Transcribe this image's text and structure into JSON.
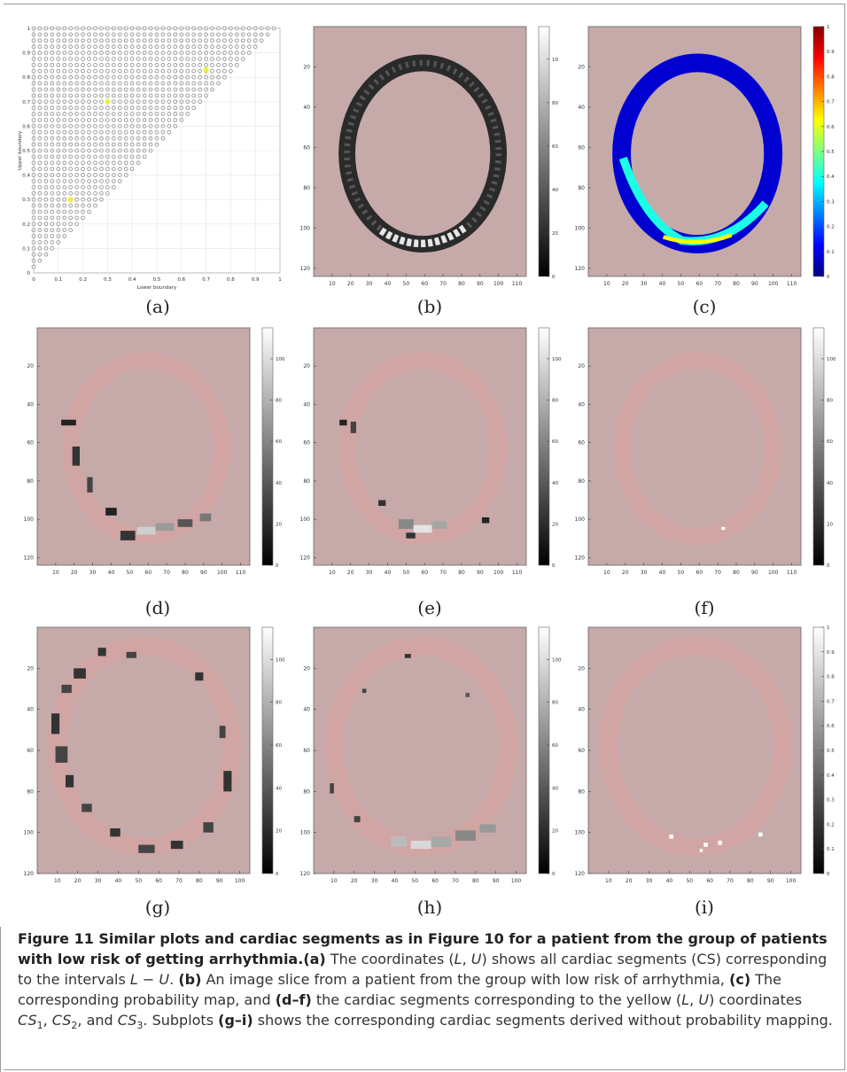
{
  "panel_labels": [
    "(a)",
    "(b)",
    "(c)",
    "(d)",
    "(e)",
    "(f)",
    "(g)",
    "(h)",
    "(i)"
  ],
  "chart_data": [
    {
      "panel": "(a)",
      "type": "scatter",
      "xlabel": "Lower boundary",
      "ylabel": "Upper boundary",
      "xlim": [
        0,
        1
      ],
      "ylim": [
        0,
        1
      ],
      "x_ticks": [
        "0",
        "0.1",
        "0.2",
        "0.3",
        "0.4",
        "0.5",
        "0.6",
        "0.7",
        "0.8",
        "0.9",
        "1"
      ],
      "y_ticks": [
        "0",
        "0.1",
        "0.2",
        "0.3",
        "0.4",
        "0.5",
        "0.6",
        "0.7",
        "0.8",
        "0.9",
        "1"
      ],
      "grid": true,
      "description_points": "gray markers at every (L,U) grid point with U > L, step 0.025",
      "highlighted_points": [
        [
          0.15,
          0.3
        ],
        [
          0.3,
          0.7
        ],
        [
          0.7,
          0.83
        ]
      ],
      "highlight_color": "#f2ef3a",
      "marker_color": "#8a8a8a"
    },
    {
      "panel": "(b)",
      "type": "heatmap",
      "colormap": "gray",
      "x_ticks": [
        "10",
        "20",
        "30",
        "40",
        "50",
        "60",
        "70",
        "80",
        "90",
        "100",
        "110"
      ],
      "y_ticks": [
        "20",
        "40",
        "60",
        "80",
        "100",
        "120"
      ],
      "colorbar_ticks": [
        "0",
        "20",
        "40",
        "60",
        "80",
        "100"
      ]
    },
    {
      "panel": "(c)",
      "type": "heatmap",
      "colormap": "jet",
      "x_ticks": [
        "10",
        "20",
        "30",
        "40",
        "50",
        "60",
        "70",
        "80",
        "90",
        "100",
        "110"
      ],
      "y_ticks": [
        "20",
        "40",
        "60",
        "80",
        "100",
        "120"
      ],
      "colorbar_ticks": [
        "0",
        "0.1",
        "0.2",
        "0.3",
        "0.4",
        "0.5",
        "0.6",
        "0.7",
        "0.8",
        "0.9",
        "1"
      ]
    },
    {
      "panel": "(d)",
      "type": "heatmap",
      "colormap": "gray",
      "x_ticks": [
        "10",
        "20",
        "30",
        "40",
        "50",
        "60",
        "70",
        "80",
        "90",
        "100",
        "110"
      ],
      "y_ticks": [
        "20",
        "40",
        "60",
        "80",
        "100",
        "120"
      ],
      "colorbar_ticks": [
        "0",
        "20",
        "40",
        "60",
        "80",
        "100"
      ]
    },
    {
      "panel": "(e)",
      "type": "heatmap",
      "colormap": "gray",
      "x_ticks": [
        "10",
        "20",
        "30",
        "40",
        "50",
        "60",
        "70",
        "80",
        "90",
        "100",
        "110"
      ],
      "y_ticks": [
        "20",
        "40",
        "60",
        "80",
        "100",
        "120"
      ],
      "colorbar_ticks": [
        "0",
        "20",
        "40",
        "60",
        "80",
        "100"
      ]
    },
    {
      "panel": "(f)",
      "type": "heatmap",
      "colormap": "gray",
      "x_ticks": [
        "10",
        "20",
        "30",
        "40",
        "50",
        "60",
        "70",
        "80",
        "90",
        "100",
        "110"
      ],
      "y_ticks": [
        "20",
        "40",
        "60",
        "80",
        "100",
        "120"
      ],
      "colorbar_ticks": [
        "0",
        "20",
        "40",
        "60",
        "80",
        "100"
      ]
    },
    {
      "panel": "(g)",
      "type": "heatmap",
      "colormap": "gray",
      "x_ticks": [
        "10",
        "20",
        "30",
        "40",
        "50",
        "60",
        "70",
        "80",
        "90",
        "100"
      ],
      "y_ticks": [
        "20",
        "40",
        "60",
        "80",
        "100",
        "120"
      ],
      "colorbar_ticks": [
        "0",
        "20",
        "40",
        "60",
        "80",
        "100"
      ]
    },
    {
      "panel": "(h)",
      "type": "heatmap",
      "colormap": "gray",
      "x_ticks": [
        "10",
        "20",
        "30",
        "40",
        "50",
        "60",
        "70",
        "80",
        "90",
        "100"
      ],
      "y_ticks": [
        "20",
        "40",
        "60",
        "80",
        "100",
        "120"
      ],
      "colorbar_ticks": [
        "0",
        "20",
        "40",
        "60",
        "80",
        "100"
      ]
    },
    {
      "panel": "(i)",
      "type": "heatmap",
      "colormap": "gray",
      "x_ticks": [
        "10",
        "20",
        "30",
        "40",
        "50",
        "60",
        "70",
        "80",
        "90",
        "100"
      ],
      "y_ticks": [
        "20",
        "40",
        "60",
        "80",
        "100",
        "120"
      ],
      "colorbar_ticks": [
        "0",
        "0.1",
        "0.2",
        "0.3",
        "0.4",
        "0.5",
        "0.6",
        "0.7",
        "0.8",
        "0.9",
        "1"
      ]
    }
  ],
  "caption": {
    "title": "Figure 11 Similar plots and cardiac segments as in Figure 10 for a patient from the group of patients with low risk of getting arrhythmia.",
    "a_label": "(a)",
    "a_text_1": " The coordinates (",
    "L": "L",
    "comma": ", ",
    "U": "U",
    "a_text_2": ") shows all cardiac segments (CS) corresponding to the intervals ",
    "dash": " − ",
    "a_text_3": ". ",
    "b_label": "(b)",
    "b_text": " An image slice from a patient from the group with low risk of arrhythmia, ",
    "c_label": "(c)",
    "c_text": " The corresponding probability map, and ",
    "df_label": "(d–f)",
    "df_text_1": " the cardiac segments corresponding to the yellow (",
    "df_text_2": ") coordinates ",
    "cs": "CS",
    "s1": "1",
    "s2": "2",
    "s3": "3",
    "and": ", and ",
    "df_text_3": ". Subplots ",
    "gi_label": "(g–i)",
    "gi_text": " shows the corresponding cardiac segments derived without probability mapping."
  }
}
